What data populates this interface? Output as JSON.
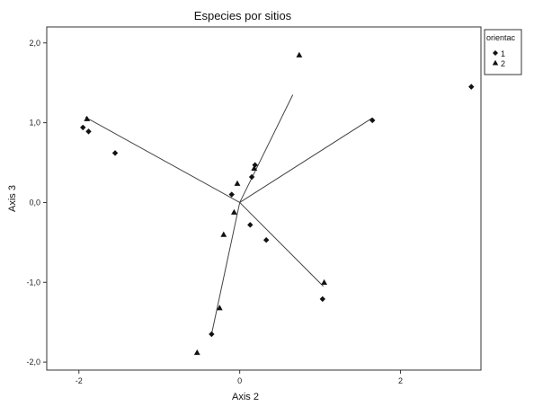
{
  "chart_data": {
    "type": "scatter",
    "title": "Especies por sitios",
    "xlabel": "Axis 2",
    "ylabel": "Axis 3",
    "xlim": [
      -2.4,
      3.0
    ],
    "ylim": [
      -2.1,
      2.2
    ],
    "xticks": [
      {
        "v": -2,
        "label": "-2"
      },
      {
        "v": 0,
        "label": "0"
      },
      {
        "v": 2,
        "label": "2"
      }
    ],
    "yticks": [
      {
        "v": 2,
        "label": "2,0"
      },
      {
        "v": 1,
        "label": "1,0"
      },
      {
        "v": 0,
        "label": "0,0"
      },
      {
        "v": -1,
        "label": "-1,0"
      },
      {
        "v": -2,
        "label": "-2,0"
      }
    ],
    "legend": {
      "title": "orientac",
      "position": "right",
      "entries": [
        {
          "marker": "diamond",
          "label": "1"
        },
        {
          "marker": "triangle",
          "label": "2"
        }
      ]
    },
    "series": [
      {
        "name": "1",
        "marker": "diamond",
        "points": [
          {
            "x": -1.95,
            "y": 0.94
          },
          {
            "x": -1.88,
            "y": 0.89
          },
          {
            "x": -1.55,
            "y": 0.62
          },
          {
            "x": -0.1,
            "y": 0.1
          },
          {
            "x": 0.15,
            "y": 0.32
          },
          {
            "x": 0.19,
            "y": 0.47
          },
          {
            "x": 0.13,
            "y": -0.28
          },
          {
            "x": 0.33,
            "y": -0.47
          },
          {
            "x": -0.35,
            "y": -1.65
          },
          {
            "x": 1.03,
            "y": -1.21
          },
          {
            "x": 1.65,
            "y": 1.03
          },
          {
            "x": 2.88,
            "y": 1.45
          }
        ]
      },
      {
        "name": "2",
        "marker": "triangle",
        "points": [
          {
            "x": -1.9,
            "y": 1.05
          },
          {
            "x": -0.03,
            "y": 0.24
          },
          {
            "x": 0.18,
            "y": 0.43
          },
          {
            "x": -0.07,
            "y": -0.12
          },
          {
            "x": -0.2,
            "y": -0.4
          },
          {
            "x": -0.25,
            "y": -1.32
          },
          {
            "x": -0.53,
            "y": -1.88
          },
          {
            "x": 0.74,
            "y": 1.85
          },
          {
            "x": 1.05,
            "y": -1.0
          }
        ]
      }
    ],
    "vectors": [
      {
        "x": -1.92,
        "y": 1.07
      },
      {
        "x": 0.66,
        "y": 1.35
      },
      {
        "x": 1.65,
        "y": 1.06
      },
      {
        "x": 1.04,
        "y": -1.05
      },
      {
        "x": -0.35,
        "y": -1.65
      }
    ]
  }
}
